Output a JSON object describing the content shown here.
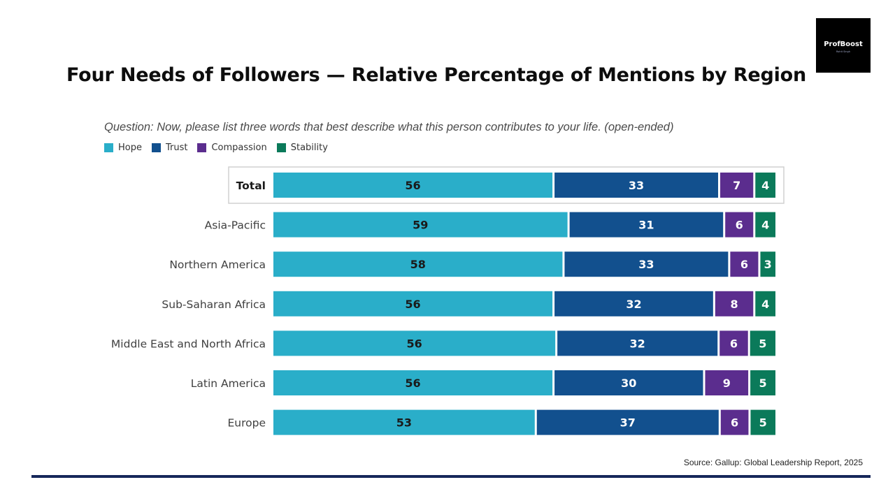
{
  "slide": {
    "title": "Four Needs of Followers — Relative Percentage of Mentions by Region",
    "source": "Source: Gallup: Global Leadership Report, 2025"
  },
  "logo": {
    "brand": "ProfBoost",
    "tagline": "Rohit Singh"
  },
  "chart_data": {
    "type": "bar",
    "orientation": "horizontal",
    "stacked": true,
    "title": "",
    "subtitle": "Question: Now, please list three words that best describe what this person contributes to your life. (open-ended)",
    "legend_position": "top-left",
    "categories": [
      "Total",
      "Asia-Pacific",
      "Northern America",
      "Sub-Saharan Africa",
      "Middle East and North Africa",
      "Latin America",
      "Europe"
    ],
    "highlight_category": "Total",
    "series": [
      {
        "name": "Hope",
        "color": "#2aaec9",
        "label_color": "#1a1a1a",
        "values": [
          56,
          59,
          58,
          56,
          56,
          56,
          53
        ]
      },
      {
        "name": "Trust",
        "color": "#12508e",
        "label_color": "#ffffff",
        "values": [
          33,
          31,
          33,
          32,
          32,
          30,
          37
        ]
      },
      {
        "name": "Compassion",
        "color": "#5b2d8e",
        "label_color": "#ffffff",
        "values": [
          7,
          6,
          6,
          8,
          6,
          9,
          6
        ]
      },
      {
        "name": "Stability",
        "color": "#0b7a5a",
        "label_color": "#ffffff",
        "values": [
          4,
          4,
          3,
          4,
          5,
          5,
          5
        ]
      }
    ]
  }
}
